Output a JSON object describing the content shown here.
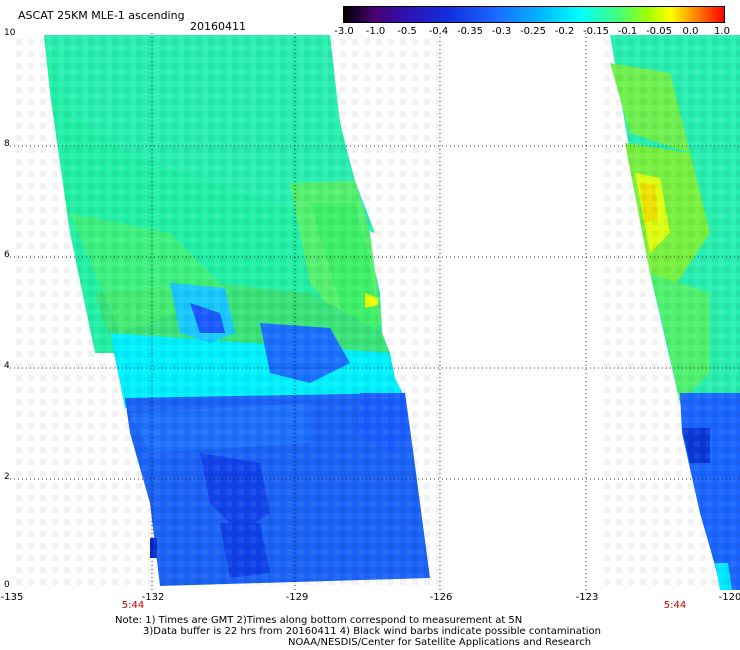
{
  "header": {
    "title": "ASCAT 25KM MLE-1 ascending",
    "date": "20160411"
  },
  "colorbar": {
    "ticks": [
      "-3.0",
      "-1.0",
      "-0.5",
      "-0.4",
      "-0.35",
      "-0.3",
      "-0.25",
      "-0.2",
      "-0.15",
      "-0.1",
      "-0.05",
      "0.0",
      "1.0"
    ],
    "colors": [
      "#000000",
      "#4a0070",
      "#3010b0",
      "#1030e0",
      "#1a6aff",
      "#00b8ff",
      "#00ffff",
      "#40ff80",
      "#a0ff00",
      "#ffff00",
      "#ff9000",
      "#ff0000"
    ]
  },
  "axes": {
    "y_ticks": [
      "10",
      "8",
      "6",
      "4",
      "2",
      "0"
    ],
    "x_ticks": [
      "-135",
      "-132",
      "-129",
      "-126",
      "-123",
      "-120"
    ]
  },
  "swath_times": [
    "5:44",
    "5:44"
  ],
  "notes": {
    "line1": "Note: 1) Times are GMT 2)Times along bottom correspond to measurement at 5N",
    "line2": "3)Data buffer is 22 hrs from 20160411 4) Black wind barbs indicate possible contamination",
    "line3": "NOAA/NESDIS/Center for Satellite Applications and Research"
  }
}
